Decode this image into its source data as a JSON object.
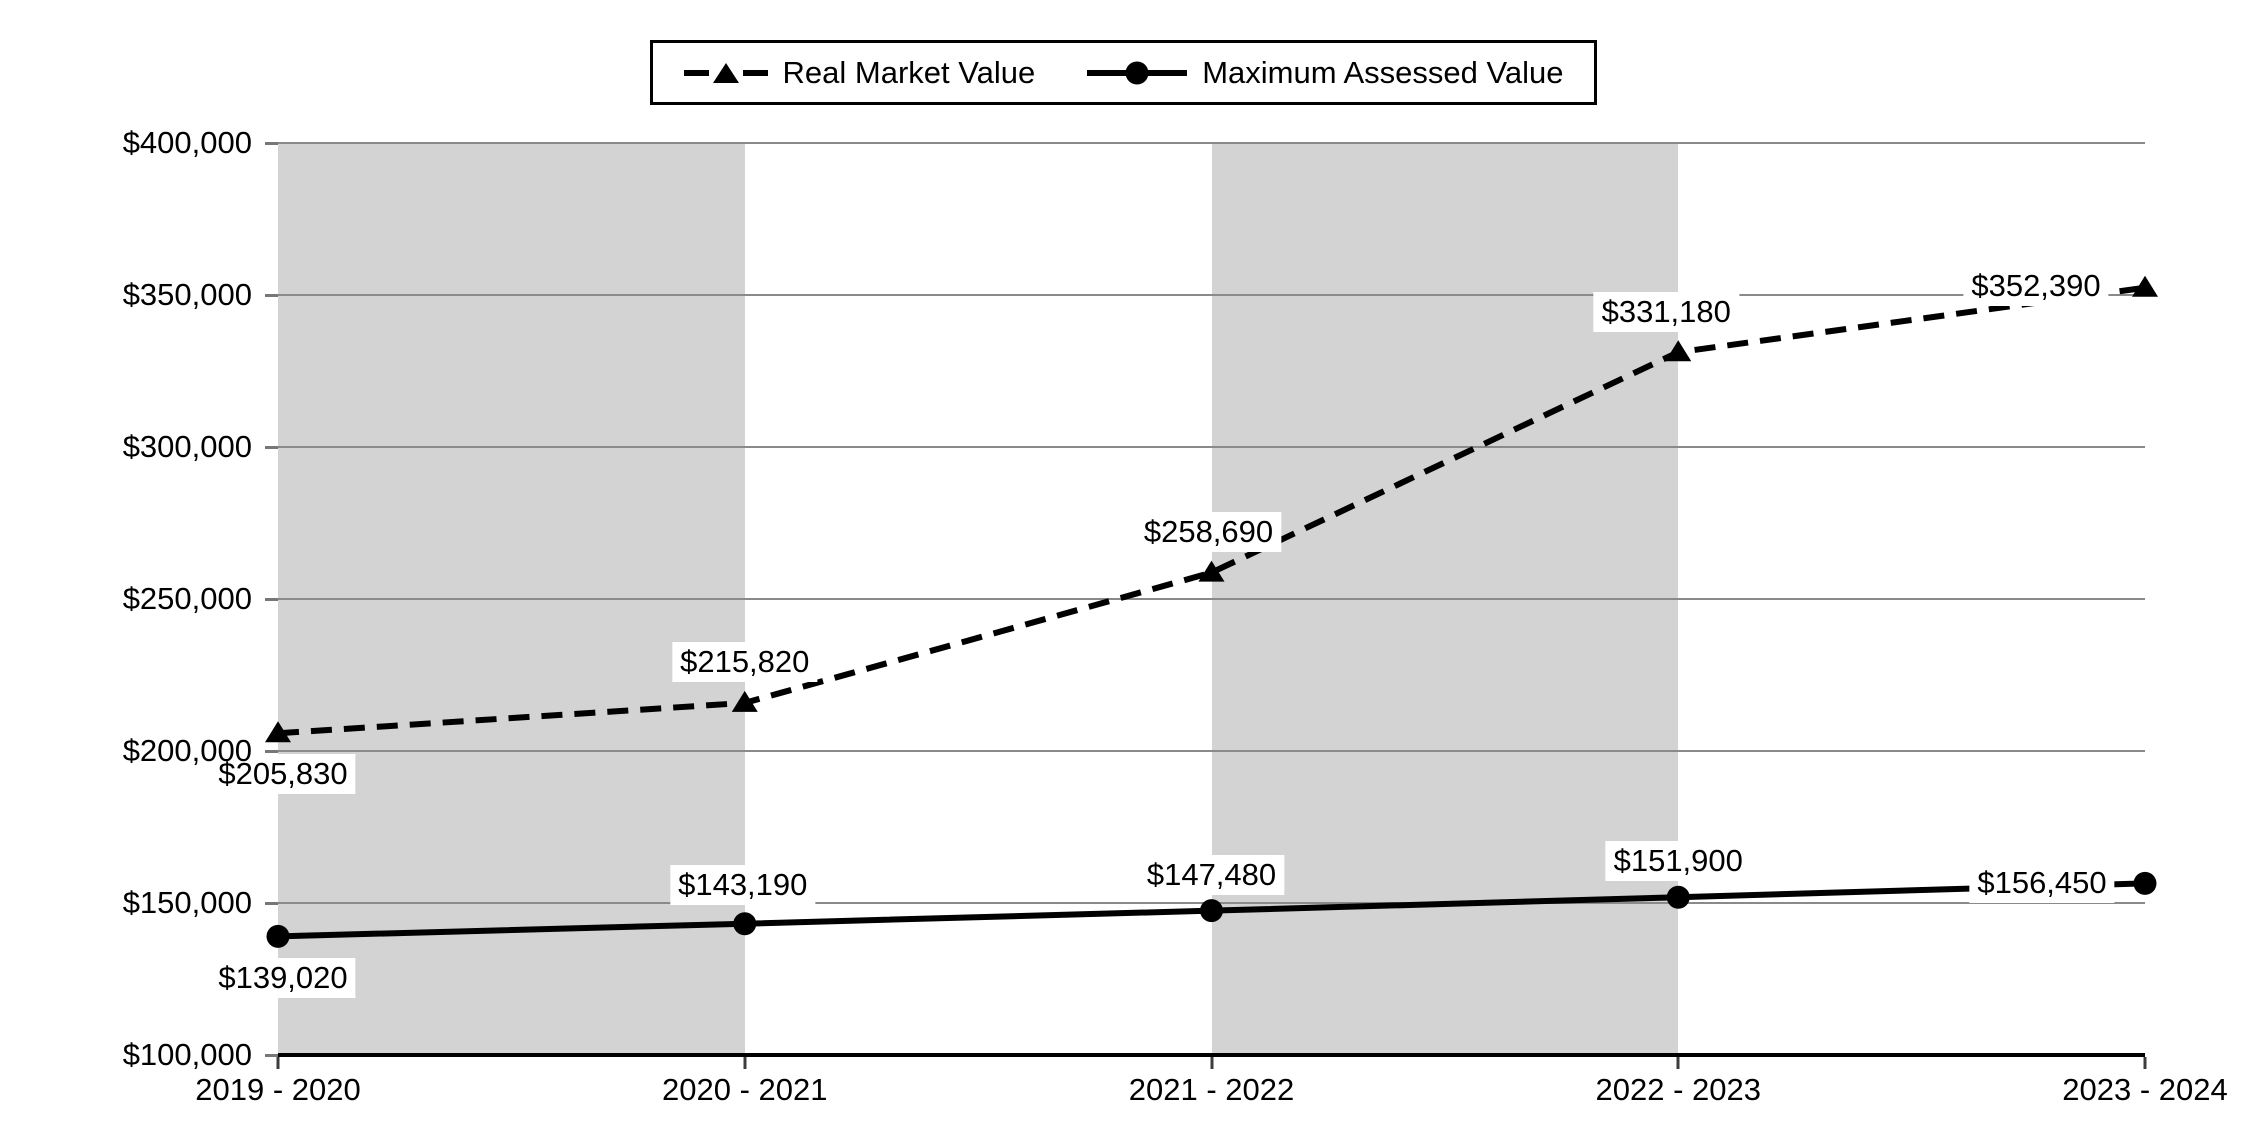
{
  "chart_data": {
    "type": "line",
    "title": "",
    "categories": [
      "2019 - 2020",
      "2020 - 2021",
      "2021 - 2022",
      "2022 - 2023",
      "2023 - 2024"
    ],
    "series": [
      {
        "name": "Real Market Value",
        "values": [
          205830,
          215820,
          258690,
          331180,
          352390
        ],
        "labels": [
          "$205,830",
          "$215,820",
          "$258,690",
          "$331,180",
          "$352,390"
        ],
        "line_style": "dashed",
        "marker": "triangle",
        "color": "#000000"
      },
      {
        "name": "Maximum Assessed Value",
        "values": [
          139020,
          143190,
          147480,
          151900,
          156450
        ],
        "labels": [
          "$139,020",
          "$143,190",
          "$147,480",
          "$151,900",
          "$156,450"
        ],
        "line_style": "solid",
        "marker": "circle",
        "color": "#000000"
      }
    ],
    "xlabel": "",
    "ylabel": "",
    "ylim": [
      100000,
      400000
    ],
    "ytick_step": 50000,
    "ytick_labels_top_to_bottom": [
      "$400,000",
      "$350,000",
      "$300,000",
      "$250,000",
      "$200,000",
      "$150,000",
      "$100,000"
    ],
    "legend_position": "top-center",
    "grid": true,
    "shaded_column_intervals": [
      [
        0,
        1
      ],
      [
        2,
        3
      ]
    ],
    "colors": {
      "band": "#d3d3d3",
      "gridline": "#8a8a8a",
      "axis": "#000000",
      "series": "#000000",
      "label_background": "#ffffff",
      "text": "#000000"
    },
    "icons": {
      "real_market_value_marker": "dashed-triangle-marker-icon",
      "maximum_assessed_value_marker": "solid-circle-marker-icon"
    }
  }
}
